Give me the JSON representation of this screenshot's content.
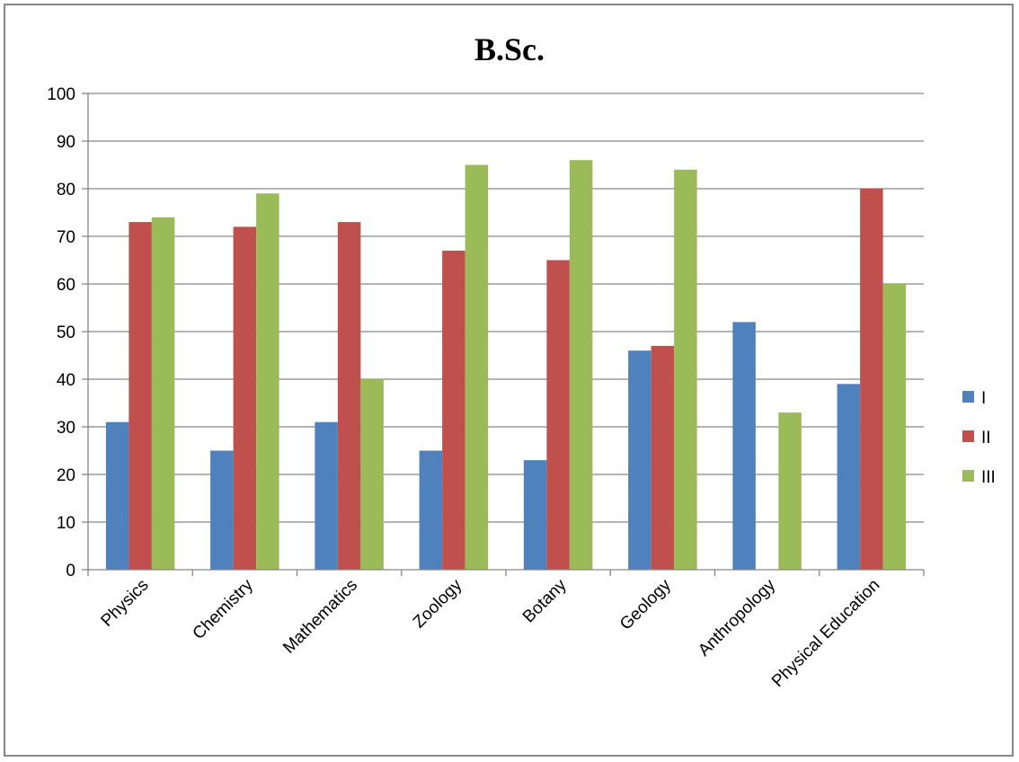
{
  "chart_data": {
    "type": "bar",
    "title": "B.Sc.",
    "xlabel": "",
    "ylabel": "",
    "ylim": [
      0,
      100
    ],
    "yticks": [
      0,
      10,
      20,
      30,
      40,
      50,
      60,
      70,
      80,
      90,
      100
    ],
    "grid": true,
    "legend_position": "right",
    "categories": [
      "Physics",
      "Chemistry",
      "Mathematics",
      "Zoology",
      "Botany",
      "Geology",
      "Anthropology",
      "Physical Education"
    ],
    "series": [
      {
        "name": "I",
        "color": "#4F81BD",
        "values": [
          31,
          25,
          31,
          25,
          23,
          46,
          52,
          39
        ]
      },
      {
        "name": "II",
        "color": "#C0504D",
        "values": [
          73,
          72,
          73,
          67,
          65,
          47,
          0,
          80
        ]
      },
      {
        "name": "III",
        "color": "#9BBB59",
        "values": [
          74,
          79,
          40,
          85,
          86,
          84,
          33,
          60
        ]
      }
    ]
  }
}
